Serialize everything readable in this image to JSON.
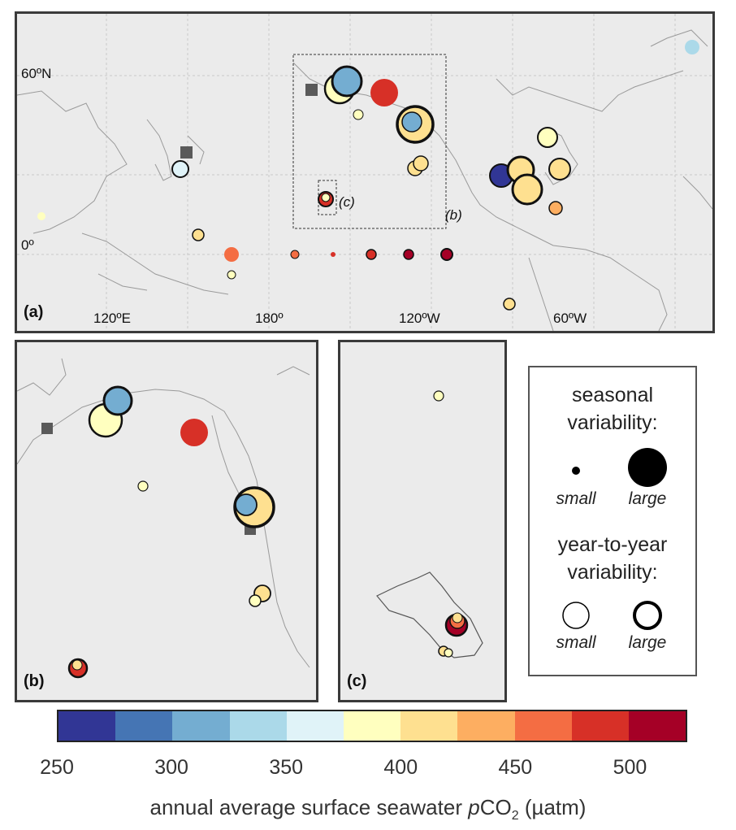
{
  "panels": {
    "a": {
      "label": "(a)",
      "lat_labels": [
        "60ºN",
        "0º"
      ],
      "lon_labels": [
        "120ºE",
        "180º",
        "120ºW",
        "60ºW"
      ],
      "inset_b": "(b)",
      "inset_c": "(c)"
    },
    "b": {
      "label": "(b)"
    },
    "c": {
      "label": "(c)"
    }
  },
  "legend": {
    "seasonal_title_1": "seasonal",
    "seasonal_title_2": "variability:",
    "small": "small",
    "large": "large",
    "yty_title_1": "year-to-year",
    "yty_title_2": "variability:"
  },
  "colorbar": {
    "colors": [
      "#313695",
      "#4575b4",
      "#74add1",
      "#abd9e9",
      "#e0f3f8",
      "#ffffbf",
      "#fee090",
      "#fdae61",
      "#f46d43",
      "#d73027",
      "#a50026"
    ],
    "ticks": [
      "250",
      "300",
      "350",
      "400",
      "450",
      "500"
    ],
    "label_pre": "annual average surface seawater ",
    "label_p": "p",
    "label_co": "CO",
    "label_sub": "2",
    "label_post": " (µatm)"
  },
  "marker_color": "#5a5a5a"
}
